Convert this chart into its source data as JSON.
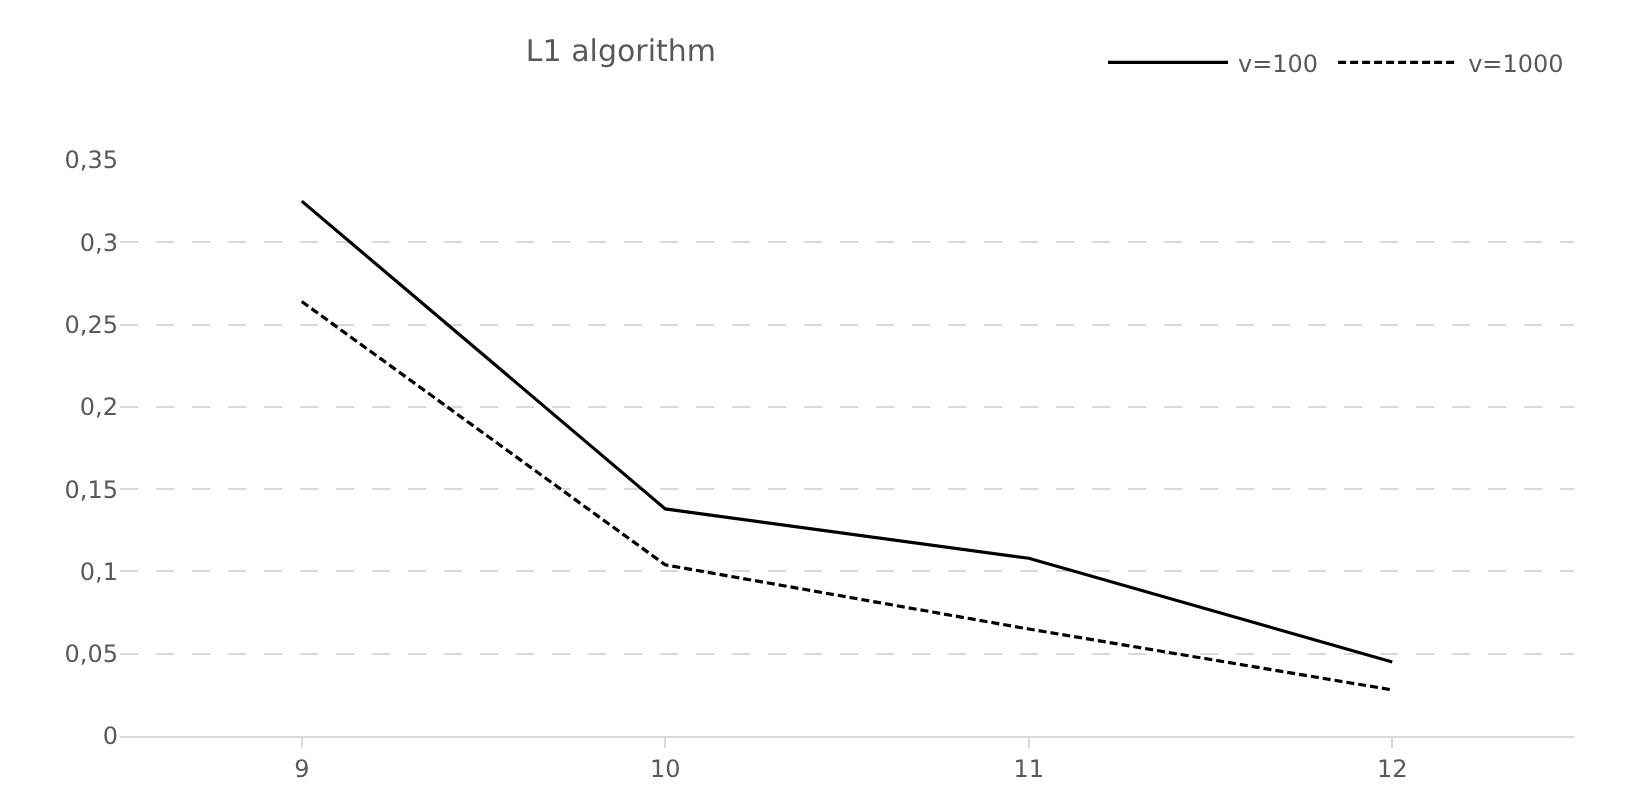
{
  "chart_data": {
    "type": "line",
    "title": "L1 algorithm",
    "categories": [
      "9",
      "10",
      "11",
      "12"
    ],
    "series": [
      {
        "name": "v=100",
        "color": "#000000",
        "line_style": "solid",
        "values": [
          0.325,
          0.138,
          0.108,
          0.045
        ]
      },
      {
        "name": "v=1000",
        "color": "#000000",
        "line_style": "dashed",
        "values": [
          0.264,
          0.104,
          0.065,
          0.028
        ]
      }
    ],
    "ylim": [
      0,
      0.35
    ],
    "yticks": [
      {
        "value": 0,
        "label": "0"
      },
      {
        "value": 0.05,
        "label": "0,05"
      },
      {
        "value": 0.1,
        "label": "0,1"
      },
      {
        "value": 0.15,
        "label": "0,15"
      },
      {
        "value": 0.2,
        "label": "0,2"
      },
      {
        "value": 0.25,
        "label": "0,25"
      },
      {
        "value": 0.3,
        "label": "0,3"
      },
      {
        "value": 0.35,
        "label": "0,35"
      }
    ],
    "grid": "y",
    "legend": "top right",
    "marker": "none"
  }
}
